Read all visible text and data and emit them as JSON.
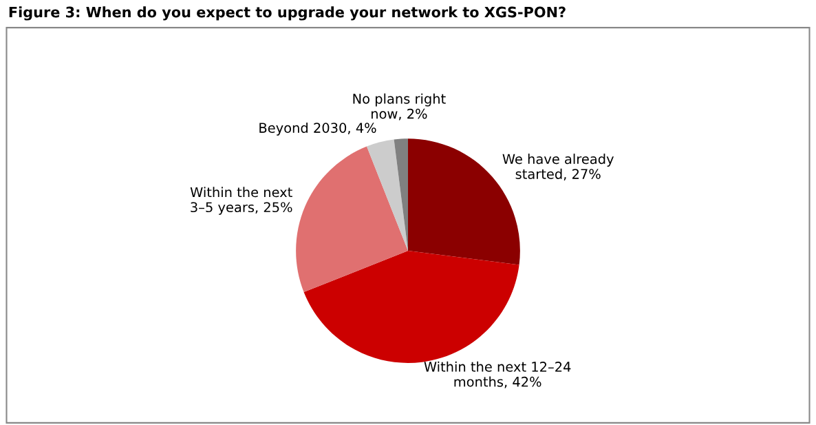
{
  "chart_data": {
    "type": "pie",
    "title": "Figure 3: When do you expect to upgrade your network to XGS-PON?",
    "categories": [
      "We have already\nstarted, 27%",
      "Within the next 12–24\nmonths, 42%",
      "Within the next\n3–5 years, 25%",
      "Beyond 2030, 4%",
      "No plans right\nnow, 2%"
    ],
    "values": [
      27,
      42,
      25,
      4,
      2
    ],
    "colors": [
      "#8b0000",
      "#cc0000",
      "#e07070",
      "#cccccc",
      "#808080"
    ],
    "legend": false
  }
}
